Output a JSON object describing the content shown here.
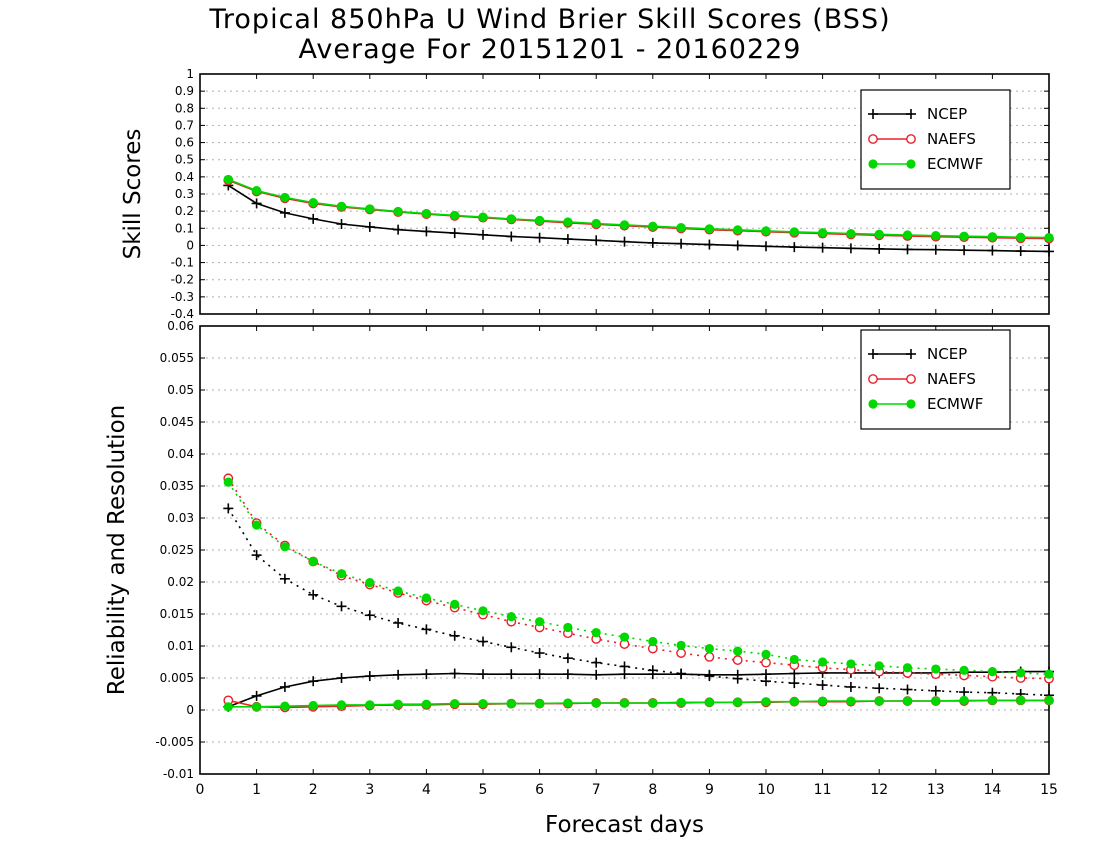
{
  "header": {
    "title": "Tropical 850hPa U Wind Brier Skill Scores (BSS)",
    "subtitle": "Average For 20151201 - 20160229"
  },
  "colors": {
    "NCEP": "#000000",
    "NAEFS": "#e8202a",
    "ECMWF": "#00d800",
    "grid": "#b0b0b0"
  },
  "chart_data": [
    {
      "type": "line",
      "panel": "top",
      "ylabel": "Skill Scores",
      "xlabel": "",
      "xlim": [
        0,
        15
      ],
      "ylim": [
        -0.4,
        1
      ],
      "xticks": [
        "0",
        "1",
        "2",
        "3",
        "4",
        "5",
        "6",
        "7",
        "8",
        "9",
        "10",
        "11",
        "12",
        "13",
        "14",
        "15"
      ],
      "yticks": [
        "-0.4",
        "-0.3",
        "-0.2",
        "-0.1",
        "0",
        "0.1",
        "0.2",
        "0.3",
        "0.4",
        "0.5",
        "0.6",
        "0.7",
        "0.8",
        "0.9",
        "1"
      ],
      "grid": true,
      "legend_position": "top-right",
      "x": [
        0.5,
        1,
        1.5,
        2,
        2.5,
        3,
        3.5,
        4,
        4.5,
        5,
        5.5,
        6,
        6.5,
        7,
        7.5,
        8,
        8.5,
        9,
        9.5,
        10,
        10.5,
        11,
        11.5,
        12,
        12.5,
        13,
        13.5,
        14,
        14.5,
        15
      ],
      "series": [
        {
          "name": "NCEP",
          "marker": "plus",
          "line": "solid",
          "values": [
            0.35,
            0.245,
            0.19,
            0.155,
            0.125,
            0.108,
            0.092,
            0.082,
            0.072,
            0.062,
            0.052,
            0.045,
            0.037,
            0.03,
            0.022,
            0.015,
            0.01,
            0.005,
            0.0,
            -0.005,
            -0.01,
            -0.013,
            -0.017,
            -0.02,
            -0.023,
            -0.025,
            -0.028,
            -0.03,
            -0.033,
            -0.035
          ]
        },
        {
          "name": "NAEFS",
          "marker": "open-circle",
          "line": "solid",
          "values": [
            0.38,
            0.315,
            0.275,
            0.245,
            0.225,
            0.21,
            0.195,
            0.183,
            0.172,
            0.162,
            0.152,
            0.142,
            0.132,
            0.123,
            0.115,
            0.107,
            0.099,
            0.092,
            0.086,
            0.08,
            0.074,
            0.069,
            0.064,
            0.059,
            0.055,
            0.051,
            0.048,
            0.045,
            0.042,
            0.04
          ]
        },
        {
          "name": "ECMWF",
          "marker": "filled-circle",
          "line": "solid",
          "values": [
            0.385,
            0.32,
            0.28,
            0.25,
            0.228,
            0.213,
            0.198,
            0.186,
            0.175,
            0.165,
            0.155,
            0.146,
            0.137,
            0.128,
            0.12,
            0.112,
            0.104,
            0.097,
            0.091,
            0.085,
            0.079,
            0.074,
            0.069,
            0.065,
            0.061,
            0.057,
            0.054,
            0.051,
            0.048,
            0.046
          ]
        }
      ]
    },
    {
      "type": "line",
      "panel": "bottom",
      "ylabel": "Reliability and Resolution",
      "xlabel": "Forecast days",
      "xlim": [
        0,
        15
      ],
      "ylim": [
        -0.01,
        0.06
      ],
      "xticks": [
        "0",
        "1",
        "2",
        "3",
        "4",
        "5",
        "6",
        "7",
        "8",
        "9",
        "10",
        "11",
        "12",
        "13",
        "14",
        "15"
      ],
      "yticks": [
        "-0.01",
        "-0.005",
        "0",
        "0.005",
        "0.01",
        "0.015",
        "0.02",
        "0.025",
        "0.03",
        "0.035",
        "0.04",
        "0.045",
        "0.05",
        "0.055",
        "0.06"
      ],
      "grid": true,
      "legend_position": "top-right",
      "x": [
        0.5,
        1,
        1.5,
        2,
        2.5,
        3,
        3.5,
        4,
        4.5,
        5,
        5.5,
        6,
        6.5,
        7,
        7.5,
        8,
        8.5,
        9,
        9.5,
        10,
        10.5,
        11,
        11.5,
        12,
        12.5,
        13,
        13.5,
        14,
        14.5,
        15
      ],
      "series": [
        {
          "name": "NCEP",
          "marker": "plus",
          "line": "dotted",
          "values": [
            0.0315,
            0.0242,
            0.0205,
            0.018,
            0.0162,
            0.0148,
            0.0136,
            0.0126,
            0.0116,
            0.0107,
            0.0098,
            0.0089,
            0.0081,
            0.0074,
            0.0068,
            0.0062,
            0.0057,
            0.0053,
            0.0049,
            0.0045,
            0.0042,
            0.0039,
            0.0036,
            0.0034,
            0.0032,
            0.003,
            0.0028,
            0.0027,
            0.0025,
            0.0023
          ]
        },
        {
          "name": "NCEP",
          "marker": "plus",
          "line": "solid",
          "values": [
            0.0005,
            0.0022,
            0.0036,
            0.0045,
            0.005,
            0.0053,
            0.0055,
            0.0056,
            0.0057,
            0.0056,
            0.0056,
            0.0056,
            0.0056,
            0.0055,
            0.0056,
            0.0056,
            0.0056,
            0.0055,
            0.0055,
            0.0056,
            0.0057,
            0.0058,
            0.0058,
            0.0058,
            0.0058,
            0.0058,
            0.0059,
            0.0059,
            0.006,
            0.006
          ]
        },
        {
          "name": "NAEFS",
          "marker": "open-circle",
          "line": "dotted",
          "values": [
            0.0362,
            0.0292,
            0.0257,
            0.0232,
            0.021,
            0.0196,
            0.0183,
            0.0171,
            0.016,
            0.0149,
            0.0138,
            0.0129,
            0.012,
            0.0111,
            0.0103,
            0.0096,
            0.0089,
            0.0083,
            0.0078,
            0.0074,
            0.007,
            0.0066,
            0.0063,
            0.006,
            0.0058,
            0.0056,
            0.0054,
            0.0052,
            0.005,
            0.0049
          ]
        },
        {
          "name": "NAEFS",
          "marker": "open-circle",
          "line": "solid",
          "values": [
            0.0015,
            0.0005,
            0.0004,
            0.0005,
            0.0006,
            0.0007,
            0.0008,
            0.0008,
            0.0009,
            0.0009,
            0.001,
            0.001,
            0.001,
            0.0011,
            0.0011,
            0.0011,
            0.0011,
            0.0012,
            0.0012,
            0.0012,
            0.0013,
            0.0013,
            0.0013,
            0.0014,
            0.0014,
            0.0014,
            0.0014,
            0.0015,
            0.0015,
            0.0015
          ]
        },
        {
          "name": "ECMWF",
          "marker": "filled-circle",
          "line": "dotted",
          "values": [
            0.0356,
            0.0289,
            0.0255,
            0.0232,
            0.0213,
            0.0199,
            0.0186,
            0.0175,
            0.0165,
            0.0155,
            0.0146,
            0.0138,
            0.0129,
            0.0121,
            0.0114,
            0.0107,
            0.0101,
            0.0096,
            0.0092,
            0.0087,
            0.0079,
            0.0075,
            0.0072,
            0.0069,
            0.0066,
            0.0064,
            0.0062,
            0.006,
            0.0058,
            0.0056
          ]
        },
        {
          "name": "ECMWF",
          "marker": "filled-circle",
          "line": "solid",
          "values": [
            0.0005,
            0.0005,
            0.0006,
            0.0007,
            0.0008,
            0.0008,
            0.0009,
            0.0009,
            0.001,
            0.001,
            0.001,
            0.001,
            0.0011,
            0.0011,
            0.0011,
            0.0011,
            0.0012,
            0.0012,
            0.0012,
            0.0013,
            0.0013,
            0.0014,
            0.0014,
            0.0014,
            0.0014,
            0.0014,
            0.0015,
            0.0015,
            0.0015,
            0.0015
          ]
        }
      ]
    }
  ]
}
